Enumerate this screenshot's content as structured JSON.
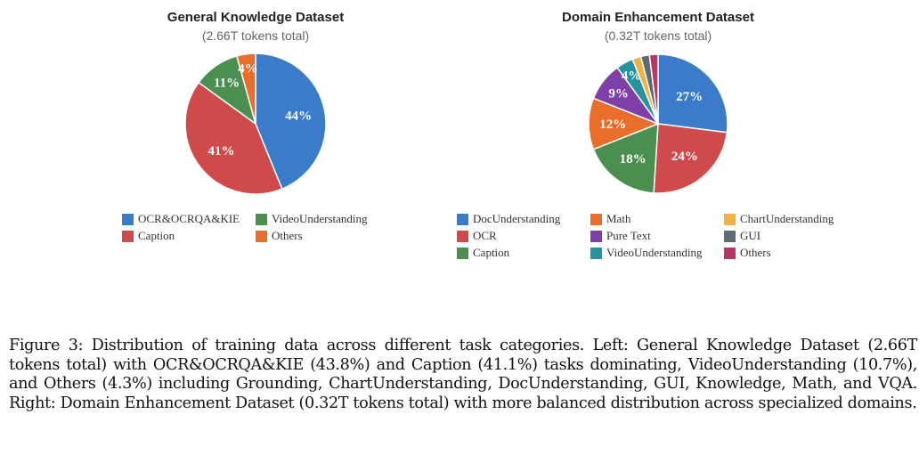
{
  "chart_data": [
    {
      "type": "pie",
      "title": "General Knowledge Dataset",
      "subtitle": "(2.66T tokens total)",
      "legend_position": "bottom",
      "slices": [
        {
          "label": "OCR&OCRQA&KIE",
          "value": 43.8,
          "display": "44%",
          "color": "#3a7cc9"
        },
        {
          "label": "Caption",
          "value": 41.1,
          "display": "41%",
          "color": "#cf4a4b"
        },
        {
          "label": "VideoUnderstanding",
          "value": 10.7,
          "display": "11%",
          "color": "#4a8f50"
        },
        {
          "label": "Others",
          "value": 4.3,
          "display": "4%",
          "color": "#ea6d2a"
        }
      ],
      "legend": [
        "OCR&OCRQA&KIE",
        "VideoUnderstanding",
        "Caption",
        "Others"
      ]
    },
    {
      "type": "pie",
      "title": "Domain Enhancement Dataset",
      "subtitle": "(0.32T tokens total)",
      "legend_position": "bottom",
      "slices": [
        {
          "label": "DocUnderstanding",
          "value": 27,
          "display": "27%",
          "color": "#3a7cc9"
        },
        {
          "label": "OCR",
          "value": 24,
          "display": "24%",
          "color": "#cf4a4b"
        },
        {
          "label": "Caption",
          "value": 18,
          "display": "18%",
          "color": "#4a8f50"
        },
        {
          "label": "Math",
          "value": 12,
          "display": "12%",
          "color": "#ea6d2a"
        },
        {
          "label": "Pure Text",
          "value": 9,
          "display": "9%",
          "color": "#7e3fa6"
        },
        {
          "label": "VideoUnderstanding",
          "value": 4,
          "display": "4%",
          "color": "#25949c"
        },
        {
          "label": "ChartUnderstanding",
          "value": 2,
          "display": "",
          "color": "#f5b042"
        },
        {
          "label": "GUI",
          "value": 2,
          "display": "",
          "color": "#5f6b73"
        },
        {
          "label": "Others",
          "value": 2,
          "display": "",
          "color": "#b8356a"
        }
      ],
      "legend": [
        "DocUnderstanding",
        "Math",
        "ChartUnderstanding",
        "OCR",
        "Pure Text",
        "GUI",
        "Caption",
        "VideoUnderstanding",
        "Others"
      ]
    }
  ],
  "caption": "Figure 3: Distribution of training data across different task categories. Left: General Knowledge Dataset (2.66T tokens total) with OCR&OCRQA&KIE (43.8%) and Caption (41.1%) tasks dominating, VideoUnderstanding (10.7%), and Others (4.3%) including Grounding, ChartUnderstanding, DocUnderstanding, GUI, Knowledge, Math, and VQA. Right: Domain Enhancement Dataset (0.32T tokens total) with more balanced distribution across specialized domains."
}
